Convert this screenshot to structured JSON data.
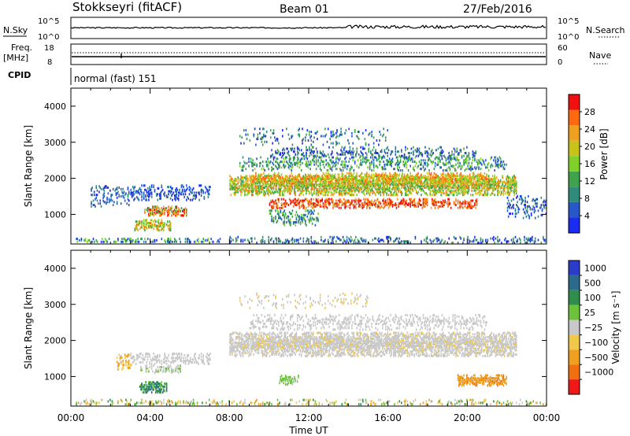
{
  "header": {
    "station": "Stokkseyri (fitACF)",
    "beam": "Beam 01",
    "date": "27/Feb/2016"
  },
  "strip_panels": {
    "noise": {
      "left_label": "N.Sky",
      "right_label": "N.Search",
      "left_ticks": [
        "10^5",
        "10^0"
      ],
      "right_ticks": [
        "10^5",
        "10^0"
      ]
    },
    "freq": {
      "left_label_top": "Freq.",
      "left_label_unit": "[MHz]",
      "right_label": "Nave",
      "left_ticks": [
        "18",
        "8"
      ],
      "right_ticks": [
        "60",
        "0"
      ]
    },
    "cpid": {
      "label": "CPID",
      "value": "normal (fast) 151"
    }
  },
  "chart_data": [
    {
      "type": "heatmap",
      "name": "power",
      "ylabel": "Slant Range [km]",
      "ylim": [
        180,
        4500
      ],
      "yticks": [
        "1000",
        "2000",
        "3000",
        "4000"
      ],
      "xlim": [
        "00:00",
        "24:00"
      ],
      "colorbar": {
        "label": "Power [dB]",
        "ticks": [
          "4",
          "8",
          "12",
          "16",
          "20",
          "24",
          "28"
        ],
        "colors": [
          "#1a2cf0",
          "#2757c8",
          "#2f8c7a",
          "#3fa34d",
          "#7fd12a",
          "#c9c319",
          "#f0a020",
          "#ff6a10",
          "#f01010"
        ]
      }
    },
    {
      "type": "heatmap",
      "name": "velocity",
      "ylabel": "Slant Range [km]",
      "ylim": [
        180,
        4500
      ],
      "yticks": [
        "1000",
        "2000",
        "3000",
        "4000"
      ],
      "xlim": [
        "00:00",
        "24:00"
      ],
      "colorbar": {
        "label": "Velocity [m s⁻¹]",
        "ticks": [
          "1000",
          "500",
          "100",
          "25",
          "−25",
          "−100",
          "−500",
          "−1000"
        ],
        "colors": [
          "#2a3cc8",
          "#2c6a8c",
          "#2f8e4c",
          "#6cc23a",
          "#c8c8c8",
          "#f0c84a",
          "#f0a020",
          "#f07010",
          "#f01818"
        ]
      }
    }
  ],
  "xaxis": {
    "ticks": [
      "00:00",
      "04:00",
      "08:00",
      "12:00",
      "16:00",
      "20:00",
      "00:00"
    ],
    "label": "Time UT"
  }
}
